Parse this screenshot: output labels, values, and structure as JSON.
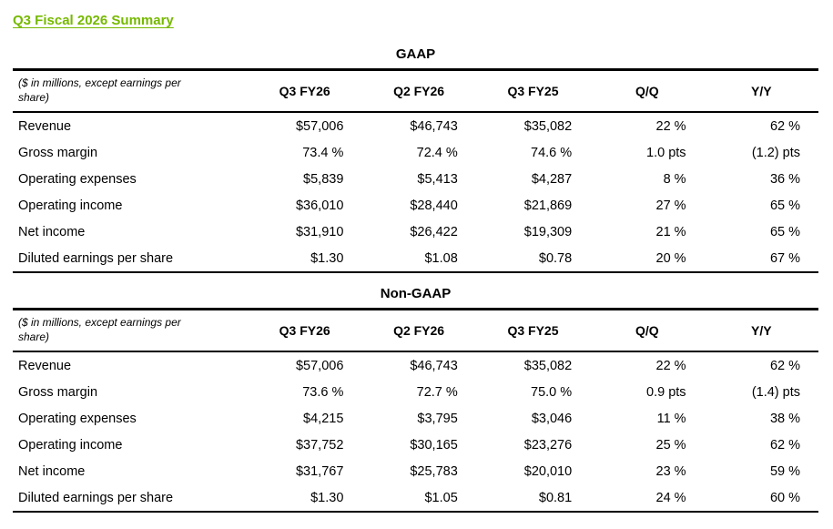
{
  "page": {
    "title": "Q3 Fiscal 2026 Summary"
  },
  "colors": {
    "accent_green": "#76b900",
    "text": "#000000",
    "border": "#000000"
  },
  "tables": [
    {
      "title": "GAAP",
      "note": "($ in millions, except earnings per share)",
      "columns": [
        "Q3 FY26",
        "Q2 FY26",
        "Q3 FY25",
        "Q/Q",
        "Y/Y"
      ],
      "rows": [
        {
          "label": "Revenue",
          "values": [
            "$57,006",
            "$46,743",
            "$35,082",
            "22 %",
            "62 %"
          ]
        },
        {
          "label": "Gross margin",
          "values": [
            "73.4 %",
            "72.4 %",
            "74.6 %",
            "1.0 pts",
            "(1.2) pts"
          ]
        },
        {
          "label": "Operating expenses",
          "values": [
            "$5,839",
            "$5,413",
            "$4,287",
            "8 %",
            "36 %"
          ]
        },
        {
          "label": "Operating income",
          "values": [
            "$36,010",
            "$28,440",
            "$21,869",
            "27 %",
            "65 %"
          ]
        },
        {
          "label": "Net income",
          "values": [
            "$31,910",
            "$26,422",
            "$19,309",
            "21 %",
            "65 %"
          ]
        },
        {
          "label": "Diluted earnings per share",
          "values": [
            "$1.30",
            "$1.08",
            "$0.78",
            "20 %",
            "67 %"
          ]
        }
      ]
    },
    {
      "title": "Non-GAAP",
      "note": "($ in millions, except earnings per share)",
      "columns": [
        "Q3 FY26",
        "Q2 FY26",
        "Q3 FY25",
        "Q/Q",
        "Y/Y"
      ],
      "rows": [
        {
          "label": "Revenue",
          "values": [
            "$57,006",
            "$46,743",
            "$35,082",
            "22 %",
            "62 %"
          ]
        },
        {
          "label": "Gross margin",
          "values": [
            "73.6 %",
            "72.7 %",
            "75.0 %",
            "0.9 pts",
            "(1.4) pts"
          ]
        },
        {
          "label": "Operating expenses",
          "values": [
            "$4,215",
            "$3,795",
            "$3,046",
            "11 %",
            "38 %"
          ]
        },
        {
          "label": "Operating income",
          "values": [
            "$37,752",
            "$30,165",
            "$23,276",
            "25 %",
            "62 %"
          ]
        },
        {
          "label": "Net income",
          "values": [
            "$31,767",
            "$25,783",
            "$20,010",
            "23 %",
            "59 %"
          ]
        },
        {
          "label": "Diluted earnings per share",
          "values": [
            "$1.30",
            "$1.05",
            "$0.81",
            "24 %",
            "60 %"
          ]
        }
      ]
    }
  ]
}
